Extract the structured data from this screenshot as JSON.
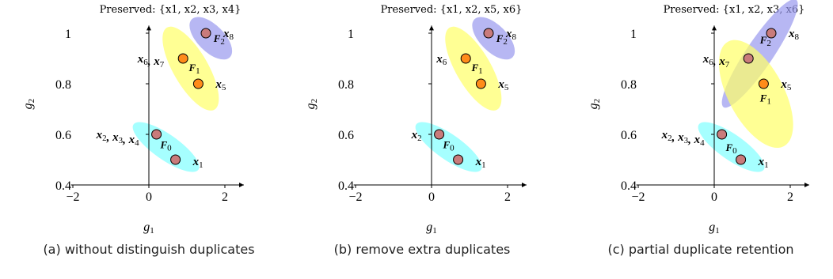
{
  "chart_data": [
    {
      "type": "scatter",
      "title": "Preserved: {x1, x2, x3, x4}",
      "caption": "(a) without distinguish duplicates",
      "xlabel": "g1",
      "ylabel": "g2",
      "xlim": [
        -2,
        2.5
      ],
      "ylim": [
        0.4,
        1.02
      ],
      "xticks": [
        "−2",
        "0",
        "2"
      ],
      "xtick_values": [
        -2,
        0,
        2
      ],
      "yticks": [
        "0.4",
        "0.6",
        "0.8",
        "1"
      ],
      "ytick_values": [
        0.4,
        0.6,
        0.8,
        1
      ],
      "points": [
        {
          "x": 1.5,
          "y": 1.0,
          "label": "x8",
          "front": "F2"
        },
        {
          "x": 0.9,
          "y": 0.9,
          "label": "x6, x7",
          "front": "F1"
        },
        {
          "x": 1.3,
          "y": 0.8,
          "label": "x5",
          "front": "F1"
        },
        {
          "x": 0.2,
          "y": 0.6,
          "label": "x2, x3, x4",
          "front": "F0"
        },
        {
          "x": 0.7,
          "y": 0.5,
          "label": "x1",
          "front": "F0"
        }
      ],
      "fronts": [
        {
          "name": "F0",
          "color": "#80ffff"
        },
        {
          "name": "F1",
          "color": "#ffff66"
        },
        {
          "name": "F2",
          "color": "#9999ee"
        }
      ]
    },
    {
      "type": "scatter",
      "title": "Preserved: {x1, x2, x5, x6}",
      "caption": "(b) remove extra duplicates",
      "xlabel": "g1",
      "ylabel": "g2",
      "xlim": [
        -2,
        2.5
      ],
      "ylim": [
        0.4,
        1.02
      ],
      "xticks": [
        "−2",
        "0",
        "2"
      ],
      "xtick_values": [
        -2,
        0,
        2
      ],
      "yticks": [
        "0.4",
        "0.6",
        "0.8",
        "1"
      ],
      "ytick_values": [
        0.4,
        0.6,
        0.8,
        1
      ],
      "points": [
        {
          "x": 1.5,
          "y": 1.0,
          "label": "x8",
          "front": "F2"
        },
        {
          "x": 0.9,
          "y": 0.9,
          "label": "x6",
          "front": "F1"
        },
        {
          "x": 1.3,
          "y": 0.8,
          "label": "x5",
          "front": "F1"
        },
        {
          "x": 0.2,
          "y": 0.6,
          "label": "x2",
          "front": "F0"
        },
        {
          "x": 0.7,
          "y": 0.5,
          "label": "x1",
          "front": "F0"
        }
      ],
      "fronts": [
        {
          "name": "F0",
          "color": "#80ffff"
        },
        {
          "name": "F1",
          "color": "#ffff66"
        },
        {
          "name": "F2",
          "color": "#9999ee"
        }
      ]
    },
    {
      "type": "scatter",
      "title": "Preserved: {x1, x2, x3, x6}",
      "caption": "(c) partial duplicate retention",
      "xlabel": "g1",
      "ylabel": "g2",
      "xlim": [
        -2,
        2.5
      ],
      "ylim": [
        0.4,
        1.02
      ],
      "xticks": [
        "−2",
        "0",
        "2"
      ],
      "xtick_values": [
        -2,
        0,
        2
      ],
      "yticks": [
        "0.4",
        "0.6",
        "0.8",
        "1"
      ],
      "ytick_values": [
        0.4,
        0.6,
        0.8,
        1
      ],
      "points": [
        {
          "x": 1.5,
          "y": 1.0,
          "label": "x8",
          "front": "F2"
        },
        {
          "x": 0.9,
          "y": 0.9,
          "label": "x6, x7",
          "front": "F2"
        },
        {
          "x": 1.3,
          "y": 0.8,
          "label": "x5",
          "front": "F1"
        },
        {
          "x": 0.2,
          "y": 0.6,
          "label": "x2, x3, x4",
          "front": "F0"
        },
        {
          "x": 0.7,
          "y": 0.5,
          "label": "x1",
          "front": "F0"
        }
      ],
      "fronts": [
        {
          "name": "F0",
          "color": "#80ffff"
        },
        {
          "name": "F1",
          "color": "#ffff66"
        },
        {
          "name": "F2",
          "color": "#9999ee"
        }
      ]
    }
  ],
  "styles": {
    "point_fill": "#c97b7b",
    "highlight_fill": "#ff8c1a",
    "highlight_fronts": [
      "F1"
    ],
    "point_stroke": "#000000",
    "axis_color": "#000000"
  }
}
